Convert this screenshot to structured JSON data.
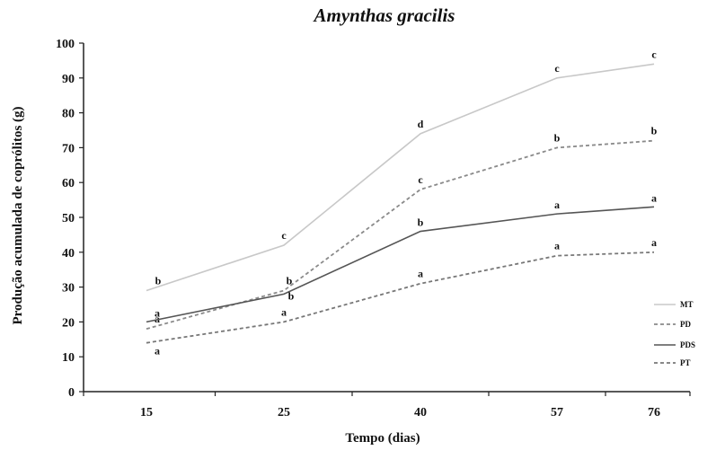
{
  "chart_data": {
    "type": "line",
    "title": "Amynthas gracilis",
    "xlabel": "Tempo (dias)",
    "ylabel": "Produção acumulada de coprólitos (g)",
    "categories": [
      "15",
      "25",
      "40",
      "57",
      "76"
    ],
    "ylim": [
      0,
      100
    ],
    "yticks": [
      "0",
      "10",
      "20",
      "30",
      "40",
      "50",
      "60",
      "70",
      "80",
      "90",
      "100"
    ],
    "grid": false,
    "legend_position": "right",
    "series": [
      {
        "name": "MT",
        "values": [
          29,
          42,
          74,
          90,
          94
        ],
        "labels": [
          "b",
          "c",
          "d",
          "c",
          "c"
        ],
        "color": "#c8c8c8",
        "style": "solid"
      },
      {
        "name": "PD",
        "values": [
          18,
          29,
          58,
          70,
          72
        ],
        "labels": [
          "a",
          "b",
          "c",
          "b",
          "b"
        ],
        "color": "#8a8a8a",
        "style": "dashed"
      },
      {
        "name": "PDS",
        "values": [
          20,
          28,
          46,
          51,
          53
        ],
        "labels": [
          "a",
          "b",
          "b",
          "a",
          "a"
        ],
        "color": "#555555",
        "style": "solid"
      },
      {
        "name": "PT",
        "values": [
          14,
          20,
          31,
          39,
          40
        ],
        "labels": [
          "a",
          "a",
          "a",
          "a",
          "a"
        ],
        "color": "#777777",
        "style": "dashed"
      }
    ]
  }
}
